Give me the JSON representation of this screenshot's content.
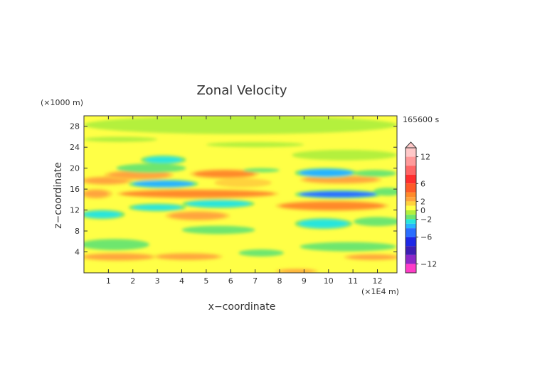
{
  "chart_data": {
    "type": "heatmap",
    "title": "Zonal Velocity",
    "xlabel": "x−coordinate",
    "ylabel": "z−coordinate",
    "x_unit": "(×1E4 m)",
    "y_unit": "(×1000 m)",
    "time_label": "165600 s",
    "xlim": [
      0,
      12.8
    ],
    "ylim": [
      0,
      30
    ],
    "x_ticks": [
      1,
      2,
      3,
      4,
      5,
      6,
      7,
      8,
      9,
      10,
      11,
      12
    ],
    "y_ticks": [
      4,
      8,
      12,
      16,
      20,
      24,
      28
    ],
    "colorbar": {
      "range": [
        -14,
        14
      ],
      "tick_values": [
        12,
        6,
        2,
        0,
        -2,
        -6,
        -12
      ],
      "tick_labels": [
        "12",
        "6",
        "2",
        "0",
        "−2",
        "−6",
        "−12"
      ],
      "levels": [
        {
          "min": 12,
          "max": 14,
          "color": "#ffc8c8"
        },
        {
          "min": 10,
          "max": 12,
          "color": "#ff9a9a"
        },
        {
          "min": 8,
          "max": 10,
          "color": "#ff6666"
        },
        {
          "min": 6,
          "max": 8,
          "color": "#ff2e2e"
        },
        {
          "min": 4,
          "max": 6,
          "color": "#ff5a28"
        },
        {
          "min": 3,
          "max": 4,
          "color": "#ff8a2a"
        },
        {
          "min": 2,
          "max": 3,
          "color": "#ffa43c"
        },
        {
          "min": 1,
          "max": 2,
          "color": "#ffd23c"
        },
        {
          "min": 0,
          "max": 1,
          "color": "#ffff46"
        },
        {
          "min": -1,
          "max": 0,
          "color": "#b4f03c"
        },
        {
          "min": -2,
          "max": -1,
          "color": "#6ee66e"
        },
        {
          "min": -3,
          "max": -2,
          "color": "#28e6dc"
        },
        {
          "min": -4,
          "max": -3,
          "color": "#28b4ff"
        },
        {
          "min": -6,
          "max": -4,
          "color": "#2a6eff"
        },
        {
          "min": -8,
          "max": -6,
          "color": "#1e28e6"
        },
        {
          "min": -10,
          "max": -8,
          "color": "#3c1eb4"
        },
        {
          "min": -12,
          "max": -10,
          "color": "#8c28c8"
        },
        {
          "min": -14,
          "max": -12,
          "color": "#ff3cc8"
        }
      ]
    },
    "background_value": 0.4,
    "features": [
      {
        "x": [
          0.0,
          2.8
        ],
        "z": [
          2.5,
          3.6
        ],
        "v": 2.4
      },
      {
        "x": [
          3.0,
          5.5
        ],
        "z": [
          2.6,
          3.6
        ],
        "v": 2.2
      },
      {
        "x": [
          10.8,
          12.8
        ],
        "z": [
          2.6,
          3.4
        ],
        "v": 2.2
      },
      {
        "x": [
          8.0,
          9.4
        ],
        "z": [
          0.0,
          0.6
        ],
        "v": 2.0
      },
      {
        "x": [
          0.0,
          2.5
        ],
        "z": [
          4.6,
          6.2
        ],
        "v": -1.6
      },
      {
        "x": [
          9.0,
          12.6
        ],
        "z": [
          4.4,
          5.6
        ],
        "v": -1.5
      },
      {
        "x": [
          6.5,
          8.0
        ],
        "z": [
          3.4,
          4.2
        ],
        "v": -1.5
      },
      {
        "x": [
          4.0,
          7.0
        ],
        "z": [
          7.4,
          9.0
        ],
        "v": -1.4
      },
      {
        "x": [
          8.8,
          10.8
        ],
        "z": [
          8.6,
          10.2
        ],
        "v": -3.0
      },
      {
        "x": [
          11.2,
          12.8
        ],
        "z": [
          9.2,
          10.4
        ],
        "v": -1.5
      },
      {
        "x": [
          3.5,
          5.8
        ],
        "z": [
          10.2,
          11.6
        ],
        "v": 2.6
      },
      {
        "x": [
          0.0,
          1.5
        ],
        "z": [
          10.5,
          11.8
        ],
        "v": -2.5
      },
      {
        "x": [
          8.0,
          12.3
        ],
        "z": [
          12.0,
          13.6
        ],
        "v": 3.0
      },
      {
        "x": [
          2.0,
          4.0
        ],
        "z": [
          12.0,
          13.0
        ],
        "v": -2.2
      },
      {
        "x": [
          4.2,
          6.8
        ],
        "z": [
          12.6,
          13.8
        ],
        "v": -3.0
      },
      {
        "x": [
          1.5,
          7.8
        ],
        "z": [
          14.4,
          15.8
        ],
        "v": 3.4
      },
      {
        "x": [
          0.0,
          1.0
        ],
        "z": [
          14.4,
          15.8
        ],
        "v": 2.0
      },
      {
        "x": [
          8.8,
          12.0
        ],
        "z": [
          14.4,
          15.6
        ],
        "v": -4.5
      },
      {
        "x": [
          12.0,
          12.8
        ],
        "z": [
          15.0,
          16.0
        ],
        "v": -1.5
      },
      {
        "x": [
          2.0,
          4.5
        ],
        "z": [
          16.4,
          17.6
        ],
        "v": -4.0
      },
      {
        "x": [
          5.5,
          7.5
        ],
        "z": [
          16.6,
          17.8
        ],
        "v": 1.8
      },
      {
        "x": [
          0.0,
          1.8
        ],
        "z": [
          17.0,
          18.2
        ],
        "v": 2.6
      },
      {
        "x": [
          9.0,
          12.0
        ],
        "z": [
          17.2,
          18.4
        ],
        "v": 2.4
      },
      {
        "x": [
          4.5,
          7.0
        ],
        "z": [
          18.2,
          19.6
        ],
        "v": 3.4
      },
      {
        "x": [
          1.0,
          3.5
        ],
        "z": [
          18.0,
          19.4
        ],
        "v": 2.2
      },
      {
        "x": [
          8.8,
          11.0
        ],
        "z": [
          18.4,
          19.8
        ],
        "v": -3.5
      },
      {
        "x": [
          11.2,
          12.6
        ],
        "z": [
          18.6,
          19.4
        ],
        "v": -1.5
      },
      {
        "x": [
          1.5,
          4.0
        ],
        "z": [
          19.4,
          20.6
        ],
        "v": -1.8
      },
      {
        "x": [
          6.5,
          8.0
        ],
        "z": [
          19.2,
          20.0
        ],
        "v": -1.4
      },
      {
        "x": [
          2.5,
          4.0
        ],
        "z": [
          21.0,
          22.2
        ],
        "v": -2.2
      },
      {
        "x": [
          0.0,
          3.0
        ],
        "z": [
          25.0,
          26.0
        ],
        "v": -0.8
      },
      {
        "x": [
          5.0,
          9.0
        ],
        "z": [
          24.0,
          25.0
        ],
        "v": -0.8
      },
      {
        "x": [
          8.5,
          12.8
        ],
        "z": [
          21.5,
          23.5
        ],
        "v": -0.7
      },
      {
        "x": [
          0.0,
          12.8
        ],
        "z": [
          26.5,
          30.0
        ],
        "v": -0.6
      }
    ]
  }
}
